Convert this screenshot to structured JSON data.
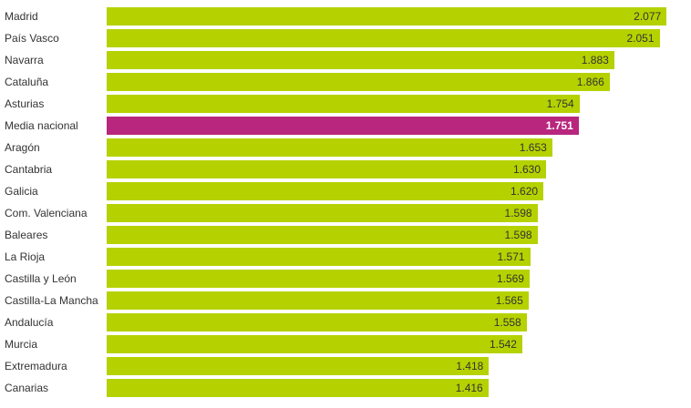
{
  "chart_data": {
    "type": "bar",
    "orientation": "horizontal",
    "categories": [
      "Madrid",
      "País Vasco",
      "Navarra",
      "Cataluña",
      "Asturias",
      "Media nacional",
      "Aragón",
      "Cantabria",
      "Galicia",
      "Com. Valenciana",
      "Baleares",
      "La Rioja",
      "Castilla y León",
      "Castilla-La Mancha",
      "Andalucía",
      "Murcia",
      "Extremadura",
      "Canarias"
    ],
    "values": [
      2077,
      2051,
      1883,
      1866,
      1754,
      1751,
      1653,
      1630,
      1620,
      1598,
      1598,
      1571,
      1569,
      1565,
      1558,
      1542,
      1418,
      1416
    ],
    "value_labels": [
      "2.077",
      "2.051",
      "1.883",
      "1.866",
      "1.754",
      "1.751",
      "1.653",
      "1.630",
      "1.620",
      "1.598",
      "1.598",
      "1.571",
      "1.569",
      "1.565",
      "1.558",
      "1.542",
      "1.418",
      "1.416"
    ],
    "highlight": "Media nacional",
    "xlim": [
      0,
      2100
    ],
    "colors": {
      "bar": "#b5d200",
      "highlight": "#b8267e"
    },
    "grid": false,
    "legend": "none"
  }
}
